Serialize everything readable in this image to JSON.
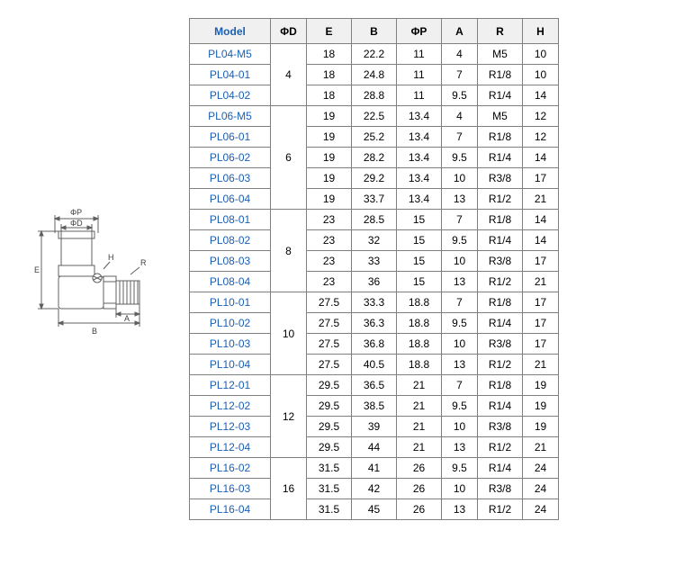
{
  "diagram": {
    "labels": {
      "phiP": "ΦP",
      "phiD": "ΦD",
      "E": "E",
      "H": "H",
      "R": "R",
      "B": "B",
      "A": "A"
    },
    "stroke": "#606060",
    "fill": "#ffffff",
    "label_fontsize": 9
  },
  "table": {
    "headers": [
      "Model",
      "ΦD",
      "E",
      "B",
      "ΦP",
      "A",
      "R",
      "H"
    ],
    "col_classes": [
      "model-col",
      "d-col",
      "e-col",
      "b-col",
      "p-col",
      "a-col",
      "r-col",
      "h-col"
    ],
    "groups": [
      {
        "d": "4",
        "rows": [
          {
            "model": "PL04-M5",
            "e": "18",
            "b": "22.2",
            "p": "11",
            "a": "4",
            "r": "M5",
            "h": "10"
          },
          {
            "model": "PL04-01",
            "e": "18",
            "b": "24.8",
            "p": "11",
            "a": "7",
            "r": "R1/8",
            "h": "10"
          },
          {
            "model": "PL04-02",
            "e": "18",
            "b": "28.8",
            "p": "11",
            "a": "9.5",
            "r": "R1/4",
            "h": "14"
          }
        ]
      },
      {
        "d": "6",
        "rows": [
          {
            "model": "PL06-M5",
            "e": "19",
            "b": "22.5",
            "p": "13.4",
            "a": "4",
            "r": "M5",
            "h": "12"
          },
          {
            "model": "PL06-01",
            "e": "19",
            "b": "25.2",
            "p": "13.4",
            "a": "7",
            "r": "R1/8",
            "h": "12"
          },
          {
            "model": "PL06-02",
            "e": "19",
            "b": "28.2",
            "p": "13.4",
            "a": "9.5",
            "r": "R1/4",
            "h": "14"
          },
          {
            "model": "PL06-03",
            "e": "19",
            "b": "29.2",
            "p": "13.4",
            "a": "10",
            "r": "R3/8",
            "h": "17"
          },
          {
            "model": "PL06-04",
            "e": "19",
            "b": "33.7",
            "p": "13.4",
            "a": "13",
            "r": "R1/2",
            "h": "21"
          }
        ]
      },
      {
        "d": "8",
        "rows": [
          {
            "model": "PL08-01",
            "e": "23",
            "b": "28.5",
            "p": "15",
            "a": "7",
            "r": "R1/8",
            "h": "14"
          },
          {
            "model": "PL08-02",
            "e": "23",
            "b": "32",
            "p": "15",
            "a": "9.5",
            "r": "R1/4",
            "h": "14"
          },
          {
            "model": "PL08-03",
            "e": "23",
            "b": "33",
            "p": "15",
            "a": "10",
            "r": "R3/8",
            "h": "17"
          },
          {
            "model": "PL08-04",
            "e": "23",
            "b": "36",
            "p": "15",
            "a": "13",
            "r": "R1/2",
            "h": "21"
          }
        ]
      },
      {
        "d": "10",
        "rows": [
          {
            "model": "PL10-01",
            "e": "27.5",
            "b": "33.3",
            "p": "18.8",
            "a": "7",
            "r": "R1/8",
            "h": "17"
          },
          {
            "model": "PL10-02",
            "e": "27.5",
            "b": "36.3",
            "p": "18.8",
            "a": "9.5",
            "r": "R1/4",
            "h": "17"
          },
          {
            "model": "PL10-03",
            "e": "27.5",
            "b": "36.8",
            "p": "18.8",
            "a": "10",
            "r": "R3/8",
            "h": "17"
          },
          {
            "model": "PL10-04",
            "e": "27.5",
            "b": "40.5",
            "p": "18.8",
            "a": "13",
            "r": "R1/2",
            "h": "21"
          }
        ]
      },
      {
        "d": "12",
        "rows": [
          {
            "model": "PL12-01",
            "e": "29.5",
            "b": "36.5",
            "p": "21",
            "a": "7",
            "r": "R1/8",
            "h": "19"
          },
          {
            "model": "PL12-02",
            "e": "29.5",
            "b": "38.5",
            "p": "21",
            "a": "9.5",
            "r": "R1/4",
            "h": "19"
          },
          {
            "model": "PL12-03",
            "e": "29.5",
            "b": "39",
            "p": "21",
            "a": "10",
            "r": "R3/8",
            "h": "19"
          },
          {
            "model": "PL12-04",
            "e": "29.5",
            "b": "44",
            "p": "21",
            "a": "13",
            "r": "R1/2",
            "h": "21"
          }
        ]
      },
      {
        "d": "16",
        "rows": [
          {
            "model": "PL16-02",
            "e": "31.5",
            "b": "41",
            "p": "26",
            "a": "9.5",
            "r": "R1/4",
            "h": "24"
          },
          {
            "model": "PL16-03",
            "e": "31.5",
            "b": "42",
            "p": "26",
            "a": "10",
            "r": "R3/8",
            "h": "24"
          },
          {
            "model": "PL16-04",
            "e": "31.5",
            "b": "45",
            "p": "26",
            "a": "13",
            "r": "R1/2",
            "h": "24"
          }
        ]
      }
    ]
  }
}
